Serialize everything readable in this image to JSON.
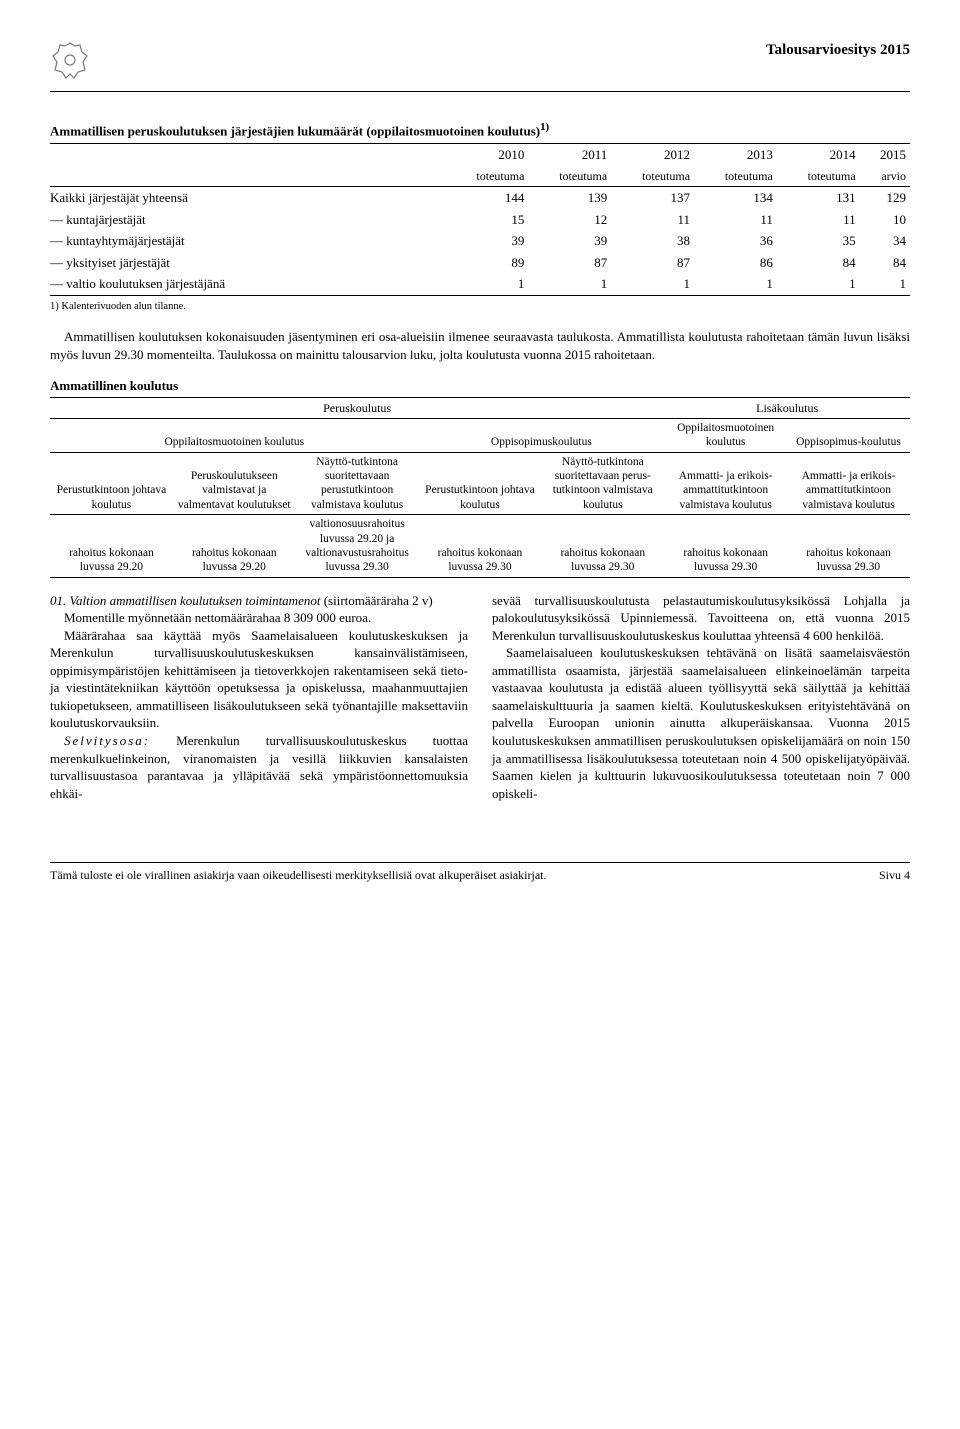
{
  "header": {
    "doc_title": "Talousarvioesitys 2015"
  },
  "table1": {
    "title": "Ammatillisen peruskoulutuksen järjestäjien lukumäärät (oppilaitosmuotoinen koulutus)",
    "footmark": "1)",
    "col_years": [
      "2010",
      "2011",
      "2012",
      "2013",
      "2014",
      "2015"
    ],
    "col_sub": [
      "toteutuma",
      "toteutuma",
      "toteutuma",
      "toteutuma",
      "toteutuma",
      "arvio"
    ],
    "rows": [
      {
        "label": "Kaikki järjestäjät yhteensä",
        "vals": [
          "144",
          "139",
          "137",
          "134",
          "131",
          "129"
        ]
      },
      {
        "label": "— kuntajärjestäjät",
        "vals": [
          "15",
          "12",
          "11",
          "11",
          "11",
          "10"
        ]
      },
      {
        "label": "— kuntayhtymäjärjestäjät",
        "vals": [
          "39",
          "39",
          "38",
          "36",
          "35",
          "34"
        ]
      },
      {
        "label": "— yksityiset järjestäjät",
        "vals": [
          "89",
          "87",
          "87",
          "86",
          "84",
          "84"
        ]
      },
      {
        "label": "— valtio koulutuksen järjestäjänä",
        "vals": [
          "1",
          "1",
          "1",
          "1",
          "1",
          "1"
        ]
      }
    ],
    "footnote": "1) Kalenterivuoden alun tilanne."
  },
  "para1": "Ammatillisen koulutuksen kokonaisuuden jäsentyminen eri osa-alueisiin ilmenee seuraavasta taulukosta. Ammatillista koulutusta rahoitetaan tämän luvun lisäksi myös luvun 29.30 momenteilta. Taulukossa on mainittu talousarvion luku, jolta koulutusta vuonna 2015 rahoitetaan.",
  "table2": {
    "title": "Ammatillinen koulutus",
    "top_groups": {
      "left": "Peruskoulutus",
      "right": "Lisäkoulutus"
    },
    "mid_cols": [
      "Oppilaitosmuotoinen koulutus",
      "Oppisopimuskoulutus",
      "Oppilaitosmuotoinen koulutus",
      "Oppisopimus-koulutus"
    ],
    "headers": [
      "Perustutkintoon johtava koulutus",
      "Peruskoulutukseen valmistavat ja valmentavat koulutukset",
      "Näyttö-tutkintona suoritettavaan perustutkintoon valmistava koulutus",
      "Perustutkintoon johtava koulutus",
      "Näyttö-tutkintona suoritettavaan perus-tutkintoon valmistava koulutus",
      "Ammatti- ja erikois-ammattitutkintoon valmistava koulutus",
      "Ammatti- ja erikois-ammattitutkintoon valmistava koulutus"
    ],
    "row": [
      "rahoitus kokonaan luvussa 29.20",
      "rahoitus kokonaan luvussa 29.20",
      "valtionosuusrahoitus luvussa 29.20 ja valtionavustusrahoitus luvussa 29.30",
      "rahoitus kokonaan luvussa 29.30",
      "rahoitus kokonaan luvussa 29.30",
      "rahoitus kokonaan luvussa 29.30",
      "rahoitus kokonaan luvussa 29.30"
    ]
  },
  "section": {
    "heading": "01. Valtion ammatillisen koulutuksen toimintamenot",
    "sub": "(siirtomääräraha 2 v)",
    "p1": "Momentille myönnetään nettomäärärahaa 8 309 000 euroa.",
    "p2": "Määrärahaa saa käyttää myös Saamelaisalueen koulutuskeskuksen ja Merenkulun turvallisuuskoulutuskeskuksen kansainvälistämiseen, oppimisympäristöjen kehittämiseen ja tietoverkkojen rakentamiseen sekä tieto- ja viestintätekniikan käyttöön opetuksessa ja opiskelussa, maahanmuuttajien tukiopetukseen, ammatilliseen lisäkoulutukseen sekä työnantajille maksettaviin koulutuskorvauksiin.",
    "p3a": "Selvitysosa:",
    "p3b": "Merenkulun turvallisuuskoulutuskeskus tuottaa merenkulkuelinkeinon, viranomaisten ja vesillä liikkuvien kansalaisten turvallisuustasoa parantavaa ja ylläpitävää sekä ympäristöonnettomuuksia ehkäi-",
    "p4": "sevää turvallisuuskoulutusta pelastautumiskoulutusyksikössä Lohjalla ja palokoulutusyksikössä Upinniemessä. Tavoitteena on, että vuonna 2015 Merenkulun turvallisuuskoulutuskeskus kouluttaa yhteensä 4 600 henkilöä.",
    "p5": "Saamelaisalueen koulutuskeskuksen tehtävänä on lisätä saamelaisväestön ammatillista osaamista, järjestää saamelaisalueen elinkeinoelämän tarpeita vastaavaa koulutusta ja edistää alueen työllisyyttä sekä säilyttää ja kehittää saamelaiskulttuuria ja saamen kieltä. Koulutuskeskuksen erityistehtävänä on palvella Euroopan unionin ainutta alkuperäiskansaa. Vuonna 2015 koulutuskeskuksen ammatillisen peruskoulutuksen opiskelijamäärä on noin 150 ja ammatillisessa lisäkoulutuksessa toteutetaan noin 4 500 opiskelijatyöpäivää. Saamen kielen ja kulttuurin lukuvuosikoulutuksessa toteutetaan noin 7 000 opiskeli-"
  },
  "footer": {
    "left": "Tämä tuloste ei ole virallinen asiakirja vaan oikeudellisesti merkityksellisiä ovat alkuperäiset asiakirjat.",
    "right": "Sivu 4"
  }
}
